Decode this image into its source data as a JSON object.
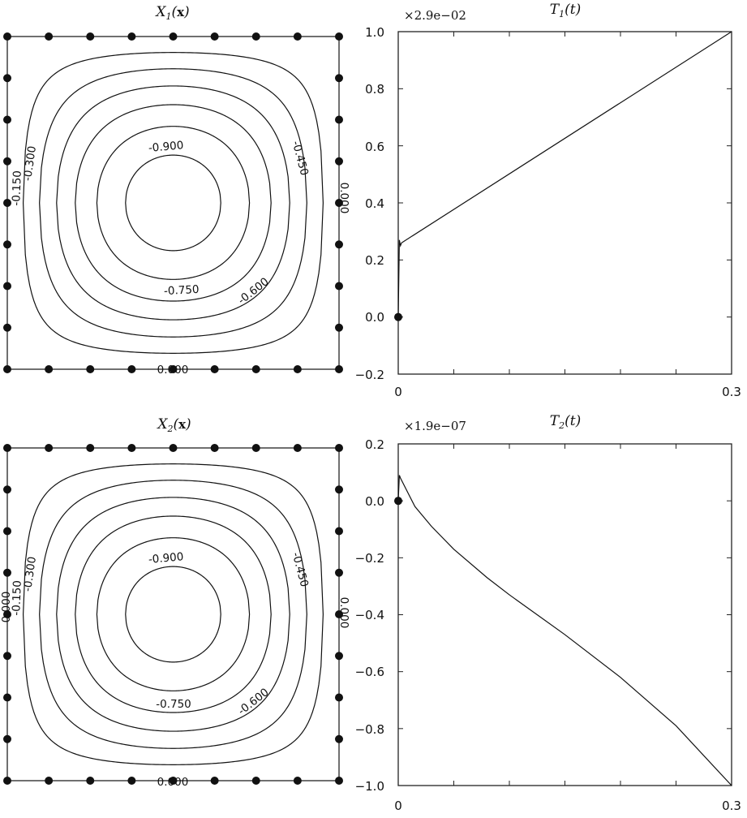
{
  "chart_data": [
    {
      "type": "contour",
      "title_symbol": "X",
      "title_subscript": "1",
      "title_arg": "x",
      "contour_levels": [
        -0.9,
        -0.75,
        -0.6,
        -0.45,
        -0.3,
        -0.15,
        0.0
      ],
      "contour_labels": [
        "-0.900",
        "-0.750",
        "-0.600",
        "-0.450",
        "-0.300",
        "-0.150",
        "0.000",
        "0.000",
        "-0.000"
      ],
      "boundary_points": true,
      "grid": false
    },
    {
      "type": "line",
      "title_symbol": "T",
      "title_subscript": "1",
      "title_arg": "t",
      "scale_label": "×2.9e−02",
      "x": [
        0,
        0.001,
        0.002,
        0.003,
        0.3
      ],
      "y": [
        0.0,
        0.27,
        0.25,
        0.26,
        1.0
      ],
      "marker": {
        "x": 0,
        "y": 0
      },
      "xlim": [
        0,
        0.3
      ],
      "ylim": [
        -0.2,
        1.0
      ],
      "xtick_labels": [
        "0",
        "0.3"
      ],
      "ytick_labels": [
        "1.0",
        "0.8",
        "0.6",
        "0.4",
        "0.2",
        "0.0",
        "−0.2"
      ],
      "grid": false
    },
    {
      "type": "contour",
      "title_symbol": "X",
      "title_subscript": "2",
      "title_arg": "x",
      "contour_levels": [
        -0.9,
        -0.75,
        -0.6,
        -0.45,
        -0.3,
        -0.15,
        0.0
      ],
      "contour_labels": [
        "-0.900",
        "-0.750",
        "-0.600",
        "-0.450",
        "-0.300",
        "-0.150",
        "0.000",
        "0.000",
        "0.000"
      ],
      "boundary_points": true,
      "grid": false
    },
    {
      "type": "line",
      "title_symbol": "T",
      "title_subscript": "2",
      "title_arg": "t",
      "scale_label": "×1.9e−07",
      "x": [
        0,
        0.001,
        0.002,
        0.015,
        0.03,
        0.05,
        0.08,
        0.1,
        0.15,
        0.2,
        0.25,
        0.3
      ],
      "y": [
        0.0,
        0.09,
        0.08,
        -0.02,
        -0.09,
        -0.17,
        -0.27,
        -0.33,
        -0.47,
        -0.62,
        -0.79,
        -1.0
      ],
      "marker": {
        "x": 0,
        "y": 0
      },
      "xlim": [
        0,
        0.3
      ],
      "ylim": [
        -1.0,
        0.2
      ],
      "xtick_labels": [
        "0",
        "0.3"
      ],
      "ytick_labels": [
        "0.2",
        "0.0",
        "−0.2",
        "−0.4",
        "−0.6",
        "−0.8",
        "−1.0"
      ],
      "grid": false
    }
  ]
}
